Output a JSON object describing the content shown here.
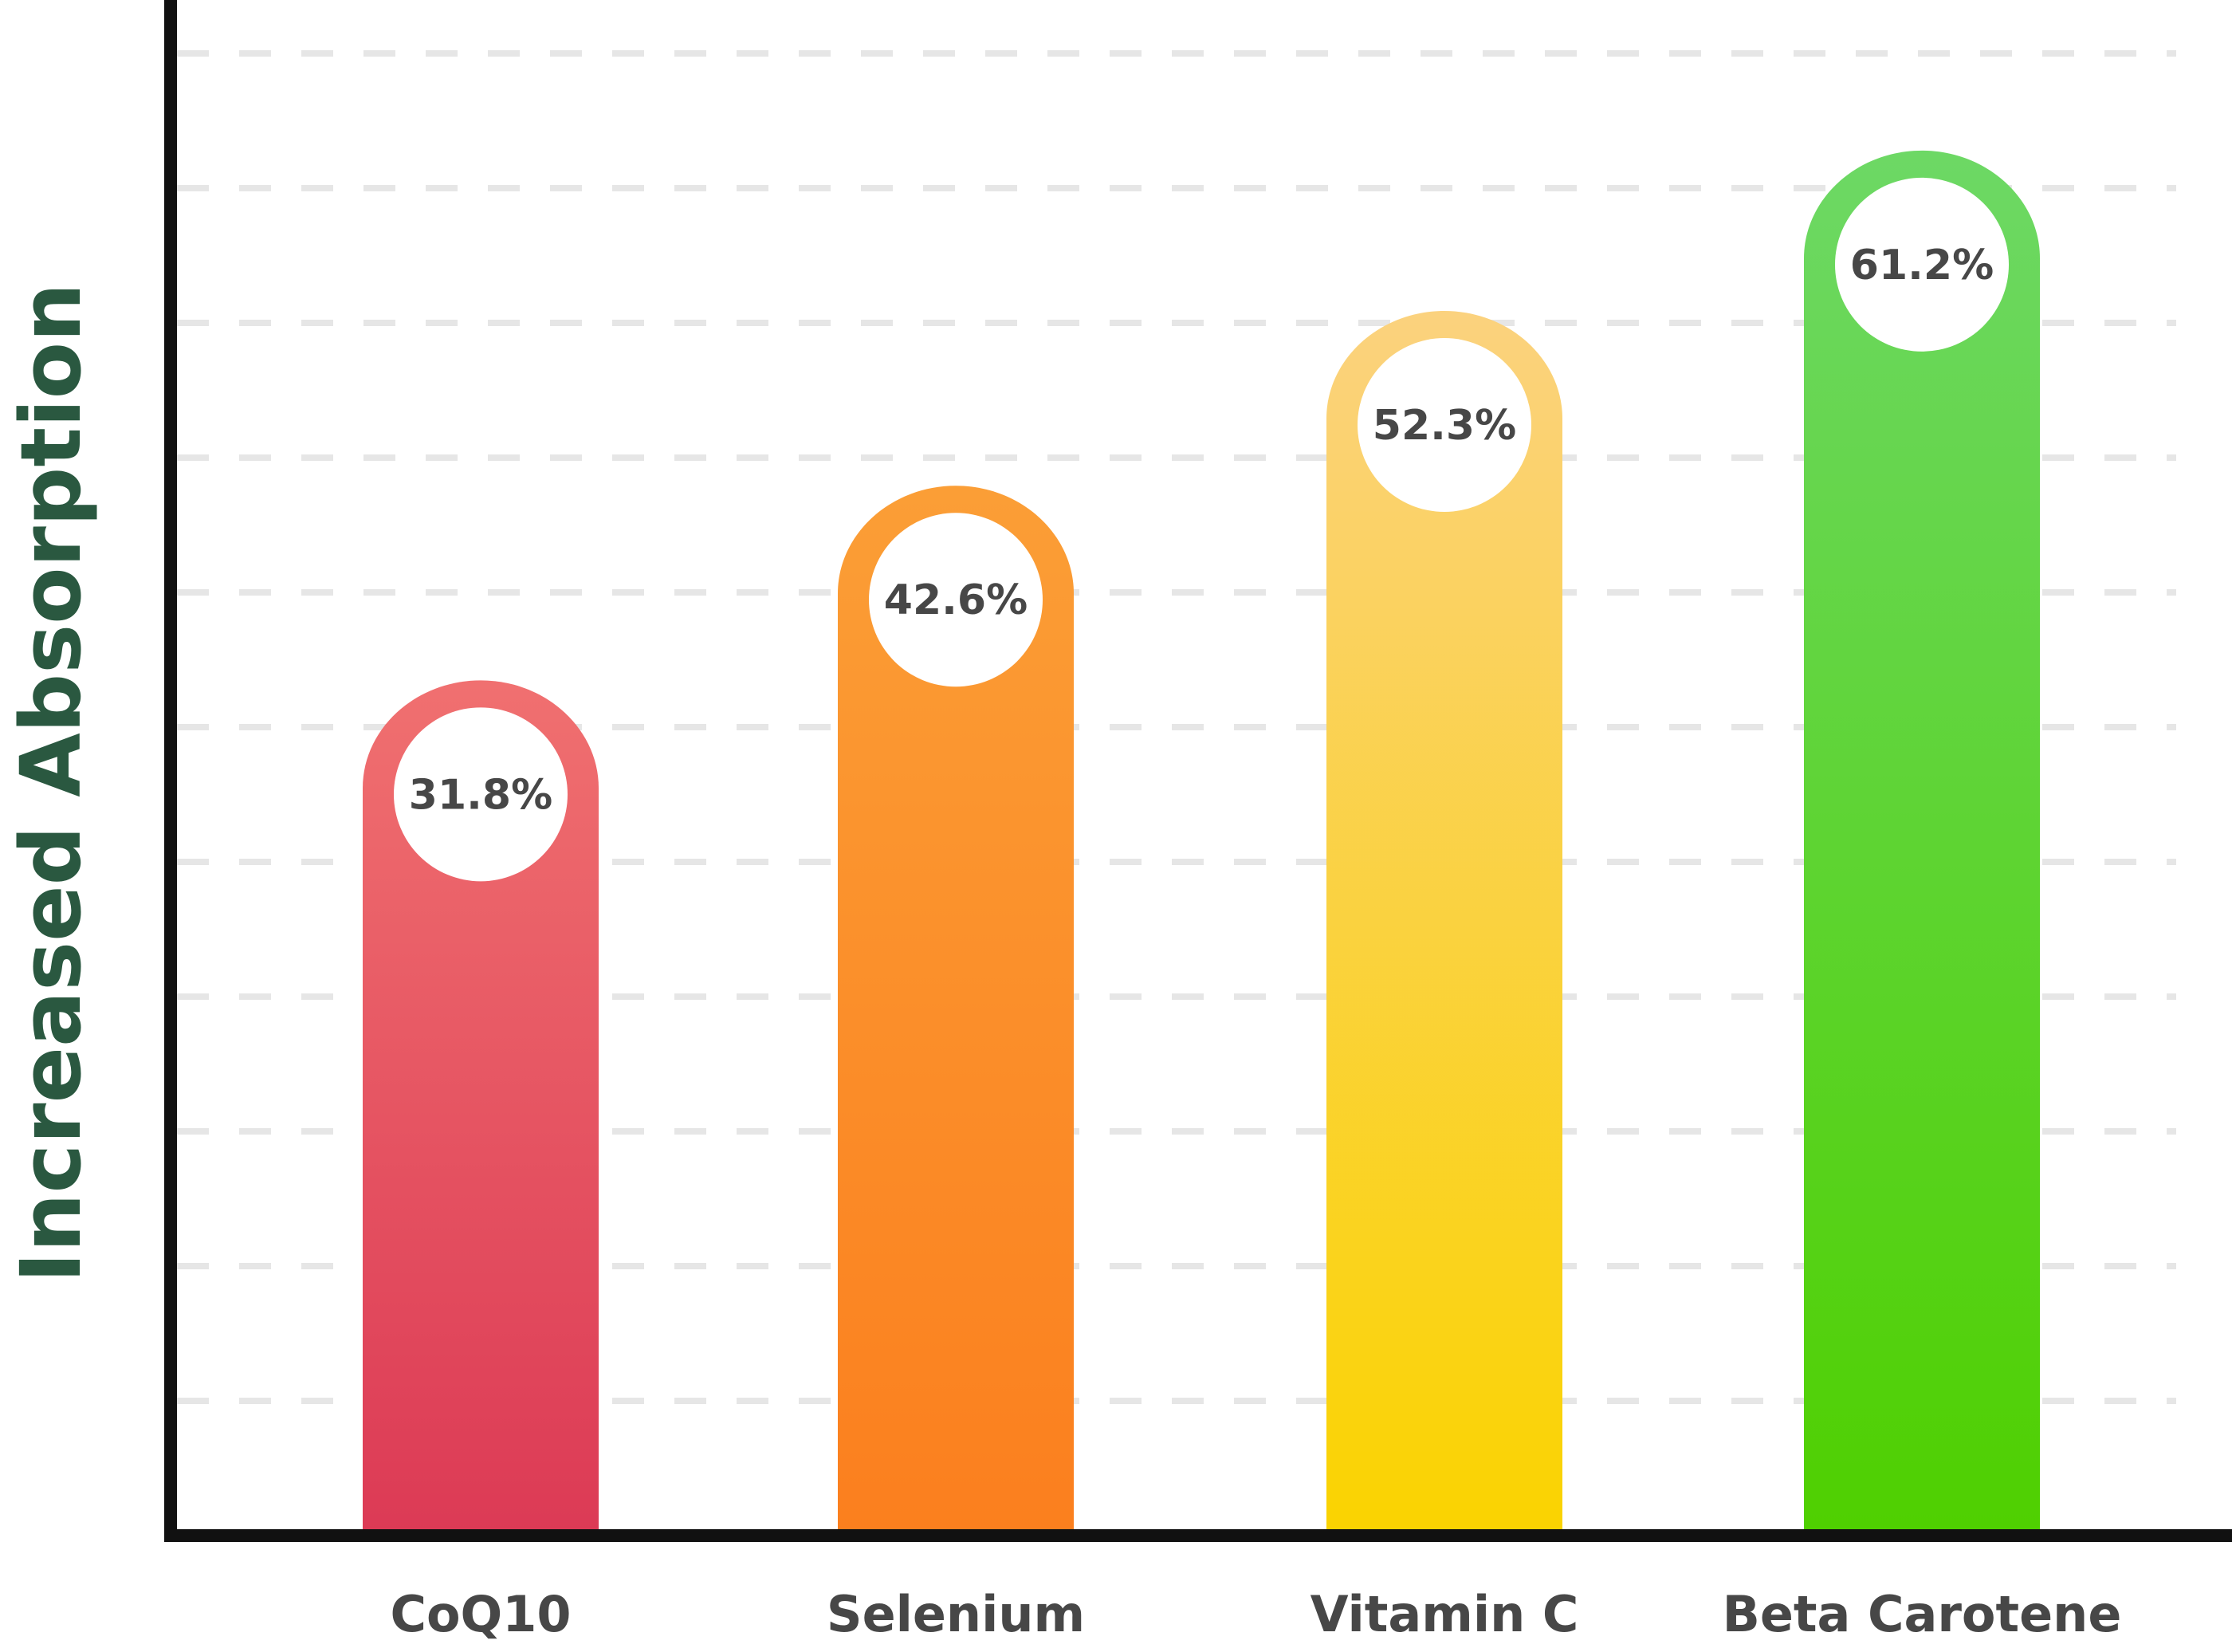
{
  "chart_data": {
    "type": "bar",
    "title": "",
    "xlabel": "",
    "ylabel": "Increased Absorption",
    "categories": [
      "CoQ10",
      "Selenium",
      "Vitamin C",
      "Beta Carotene"
    ],
    "values": [
      31.8,
      42.6,
      52.3,
      61.2
    ],
    "value_labels": [
      "31.8%",
      "42.6%",
      "52.3%",
      "61.2%"
    ],
    "grid": true,
    "legend": "none",
    "colors": [
      {
        "top": "#f07070",
        "bottom": "#dc3a55"
      },
      {
        "top": "#fb9e36",
        "bottom": "#fb7f1e"
      },
      {
        "top": "#fbd27e",
        "bottom": "#fad300"
      },
      {
        "top": "#6dd865",
        "bottom": "#4fd000"
      }
    ],
    "title_color": "#2a5840",
    "label_color": "#474747",
    "grid_color": "#e6e6e6"
  }
}
